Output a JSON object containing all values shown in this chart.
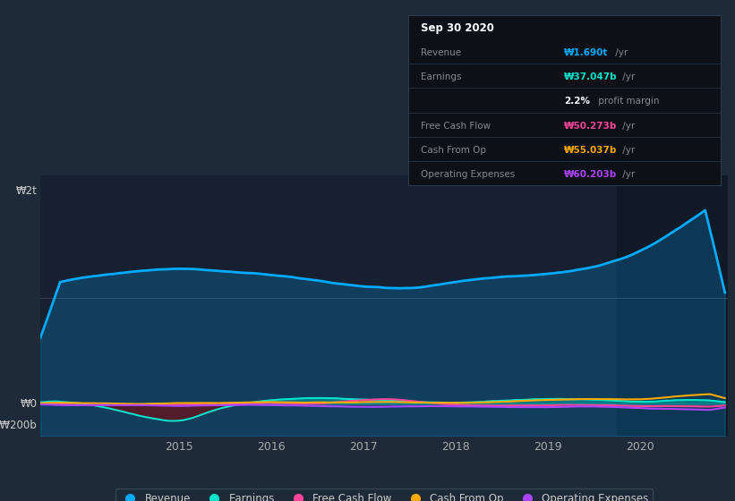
{
  "bg_color": "#1e2a38",
  "chart_area_color": "#162030",
  "revenue_color": "#00aaff",
  "earnings_color": "#00e5cc",
  "fcf_color": "#ff4499",
  "cashfromop_color": "#ffaa00",
  "opex_color": "#aa44ff",
  "earnings_neg_color": "#8B0000",
  "ylabel_w2t": "₩2t",
  "ylabel_0": "₩0",
  "ylabel_neg200b": "-₩200b",
  "table_bg": "#0d1117",
  "table_revenue_color": "#00aaff",
  "table_earnings_color": "#00e5cc",
  "table_fcf_color": "#ff4499",
  "table_cashfromop_color": "#ffaa00",
  "table_opex_color": "#aa44ff",
  "table_white_color": "#ffffff",
  "table_gray_color": "#888888"
}
